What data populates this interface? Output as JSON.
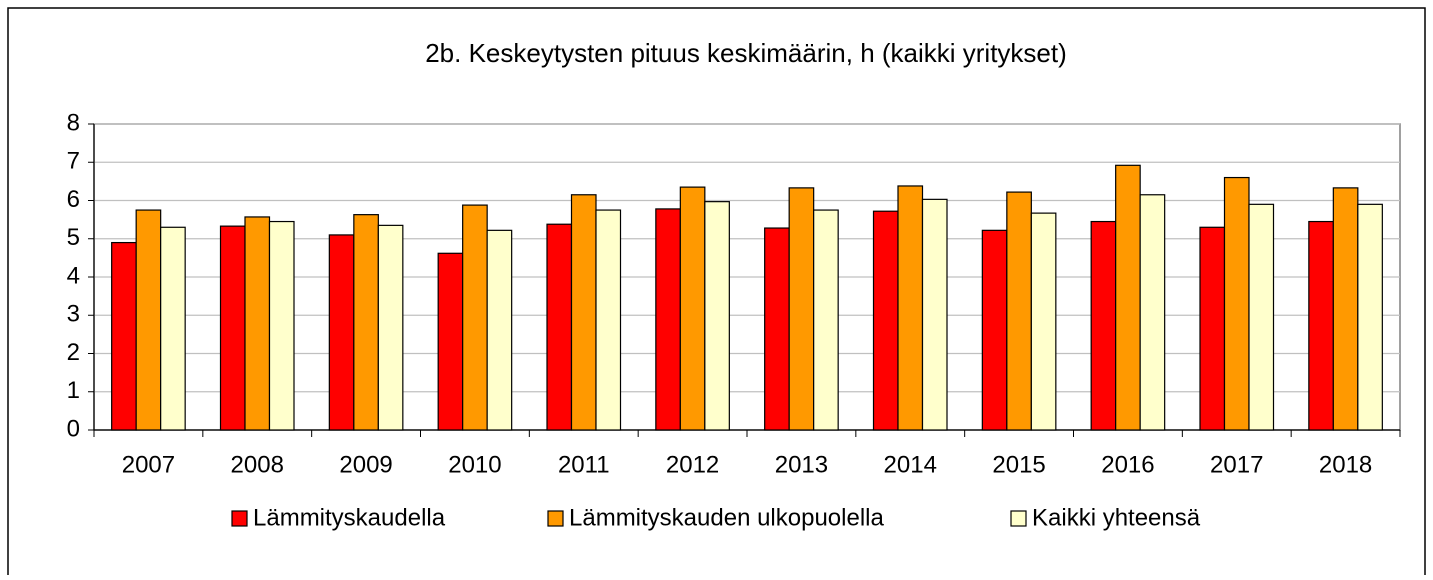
{
  "chart_data": {
    "type": "bar",
    "title": "2b. Keskeytysten pituus keskimäärin, h (kaikki yritykset)",
    "categories": [
      "2007",
      "2008",
      "2009",
      "2010",
      "2011",
      "2012",
      "2013",
      "2014",
      "2015",
      "2016",
      "2017",
      "2018"
    ],
    "series": [
      {
        "name": "Lämmityskaudella",
        "color": "#ff0000",
        "values": [
          4.9,
          5.33,
          5.1,
          4.62,
          5.38,
          5.78,
          5.28,
          5.72,
          5.22,
          5.45,
          5.3,
          5.45
        ]
      },
      {
        "name": "Lämmityskauden ulkopuolella",
        "color": "#ff9900",
        "values": [
          5.75,
          5.57,
          5.63,
          5.88,
          6.15,
          6.35,
          6.33,
          6.38,
          6.22,
          6.92,
          6.6,
          6.33
        ]
      },
      {
        "name": "Kaikki yhteensä",
        "color": "#ffffcc",
        "values": [
          5.3,
          5.45,
          5.35,
          5.22,
          5.75,
          5.97,
          5.75,
          6.03,
          5.67,
          6.15,
          5.9,
          5.9
        ]
      }
    ],
    "ylim": [
      0,
      8
    ],
    "yticks": [
      0,
      1,
      2,
      3,
      4,
      5,
      6,
      7,
      8
    ],
    "grid": true,
    "legend": "bottom"
  }
}
